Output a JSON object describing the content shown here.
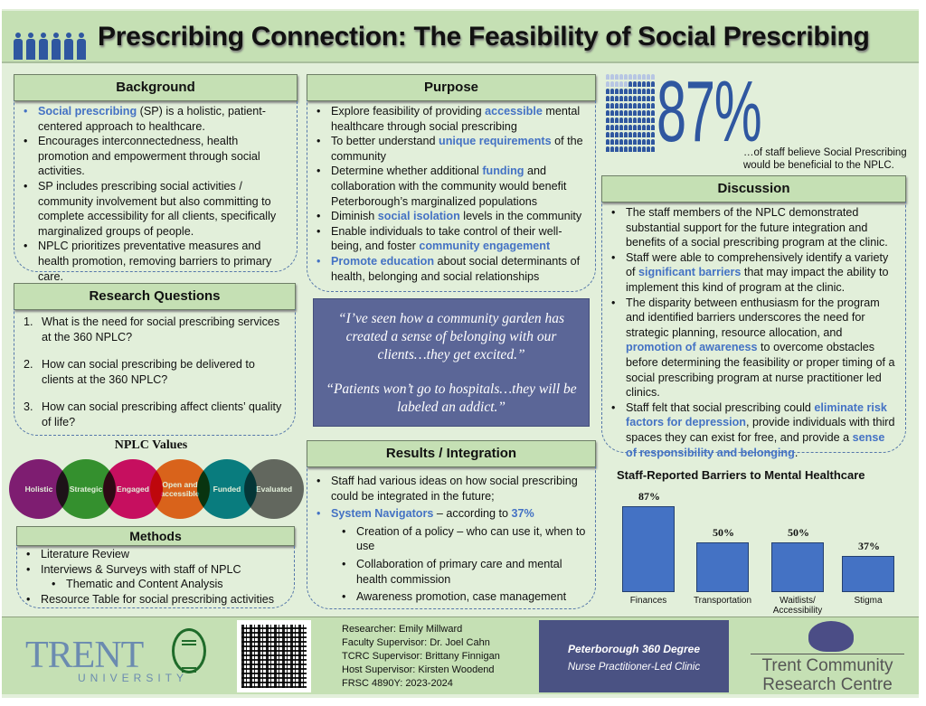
{
  "header": {
    "title": "Prescribing Connection: The Feasibility of Social Prescribing",
    "icon": "people-row-icon"
  },
  "background": {
    "heading": "Background",
    "items": [
      [
        {
          "t": "Social prescribing",
          "hl": true
        },
        {
          "t": " (SP) is a holistic, patient-centered approach to healthcare."
        }
      ],
      [
        {
          "t": "Encourages interconnectedness, health promotion and empowerment through social activities."
        }
      ],
      [
        {
          "t": "SP includes prescribing social activities / community involvement but also committing to complete accessibility for all clients, specifically marginalized groups of people."
        }
      ],
      [
        {
          "t": "NPLC prioritizes preventative measures and health promotion, removing barriers to primary care."
        }
      ]
    ]
  },
  "research_questions": {
    "heading": "Research Questions",
    "items": [
      {
        "num": "1.",
        "text": "What is the need for social prescribing services at the 360 NPLC?"
      },
      {
        "num": "2.",
        "text": "How can social prescribing be delivered to clients at the 360 NPLC?"
      },
      {
        "num": "3.",
        "text": "How can social prescribing affect clients’ quality of life?"
      }
    ]
  },
  "values": {
    "title": "NPLC Values",
    "items": [
      {
        "label": "Holistic",
        "color": "#8e1f84"
      },
      {
        "label": "Strategic",
        "color": "#3a9a35"
      },
      {
        "label": "Engaged",
        "color": "#e0106f"
      },
      {
        "label": "Open and accessible",
        "color": "#f56a1f"
      },
      {
        "label": "Funded",
        "color": "#0a8493"
      },
      {
        "label": "Evaluated",
        "color": "#6e6e6e"
      }
    ]
  },
  "methods": {
    "heading": "Methods",
    "items": [
      {
        "text": "Literature Review",
        "sub": false
      },
      {
        "text": "Interviews & Surveys with staff of NPLC",
        "sub": false
      },
      {
        "text": "Thematic and Content  Analysis",
        "sub": true
      },
      {
        "text": "Resource Table for social prescribing activities",
        "sub": false
      }
    ]
  },
  "purpose": {
    "heading": "Purpose",
    "items": [
      [
        {
          "t": "Explore feasibility of providing "
        },
        {
          "t": "accessible",
          "hl": true
        },
        {
          "t": " mental healthcare through social prescribing"
        }
      ],
      [
        {
          "t": "To better understand "
        },
        {
          "t": "unique requirements",
          "hl": true
        },
        {
          "t": " of the community"
        }
      ],
      [
        {
          "t": "Determine whether additional "
        },
        {
          "t": "funding",
          "hl": true
        },
        {
          "t": " and collaboration with the community would benefit Peterborough’s marginalized populations"
        }
      ],
      [
        {
          "t": "Diminish "
        },
        {
          "t": "social isolation",
          "hl": true
        },
        {
          "t": " levels in the community"
        }
      ],
      [
        {
          "t": "Enable individuals to take control of their well-being, and foster "
        },
        {
          "t": "community engagement",
          "hl": true
        }
      ],
      [
        {
          "t": "Promote education",
          "hl": true
        },
        {
          "t": " about social determinants of health, belonging and social relationships"
        }
      ]
    ]
  },
  "quotes": [
    "“I’ve seen how a community garden has created a sense of belonging with our clients…they get excited.”",
    "“Patients won’t go to hospitals…they will be labeled an addict.”"
  ],
  "results": {
    "heading": "Results / Integration",
    "items": [
      {
        "sub": false,
        "seg": [
          {
            "t": "Staff had various ideas on how social prescribing could be integrated in the future;"
          }
        ]
      },
      {
        "sub": false,
        "seg": [
          {
            "t": "System Navigators",
            "hl": true
          },
          {
            "t": " – according to "
          },
          {
            "t": "37%",
            "hl": true
          }
        ]
      },
      {
        "sub": true,
        "seg": [
          {
            "t": "Creation of a policy – who can use it, when to use"
          }
        ]
      },
      {
        "sub": true,
        "seg": [
          {
            "t": "Collaboration of primary care and mental health commission"
          }
        ]
      },
      {
        "sub": true,
        "seg": [
          {
            "t": "Awareness promotion, case management"
          }
        ]
      }
    ]
  },
  "stat": {
    "value": "87%",
    "fraction": 0.87,
    "caption": "…of staff believe Social Prescribing would be beneficial to the NPLC."
  },
  "discussion": {
    "heading": "Discussion",
    "items": [
      [
        {
          "t": "The staff members of the NPLC demonstrated substantial support for the future integration and benefits of a social prescribing program at the clinic."
        }
      ],
      [
        {
          "t": "Staff were able to comprehensively identify a variety of "
        },
        {
          "t": "significant barriers",
          "hl": true
        },
        {
          "t": " that may impact the ability to implement this kind of program at the clinic."
        }
      ],
      [
        {
          "t": "The disparity between enthusiasm for the program and identified barriers underscores the need for strategic planning, resource allocation, and "
        },
        {
          "t": "promotion of awareness",
          "hl": true
        },
        {
          "t": " to overcome obstacles before determining the feasibility or proper timing of a social prescribing program at nurse practitioner led clinics."
        }
      ],
      [
        {
          "t": "Staff felt that social prescribing could "
        },
        {
          "t": "eliminate risk factors for depression",
          "hl": true
        },
        {
          "t": ", provide individuals with third spaces they can exist for free, and provide a "
        },
        {
          "t": "sense of responsibility and belonging",
          "hl": true
        },
        {
          "t": "."
        }
      ]
    ]
  },
  "chart_data": {
    "type": "bar",
    "title": "Staff-Reported Barriers to Mental Healthcare",
    "categories": [
      "Finances",
      "Transportation",
      "Waitlists/ Accessibility",
      "Stigma"
    ],
    "values": [
      87,
      50,
      50,
      37
    ],
    "data_labels": [
      "87%",
      "50%",
      "50%",
      "37%"
    ],
    "bar_color": "#4472c4",
    "xlabel": "",
    "ylabel": "",
    "ylim": [
      0,
      100
    ],
    "grid": false
  },
  "footer": {
    "trent_logo": "TRENT",
    "trent_sub": "UNIVERSITY",
    "credits": [
      "Researcher: Emily Millward",
      "Faculty Supervisor: Dr. Joel Cahn",
      "TCRC Supervisor: Brittany Finnigan",
      "Host Supervisor: Kirsten Woodend",
      "FRSC 4890Y: 2023-2024"
    ],
    "clinic_line1": "Peterborough 360 Degree",
    "clinic_line2": "Nurse Practitioner-Led Clinic",
    "tcrc_line1": "Trent Community",
    "tcrc_line2": "Research Centre"
  }
}
